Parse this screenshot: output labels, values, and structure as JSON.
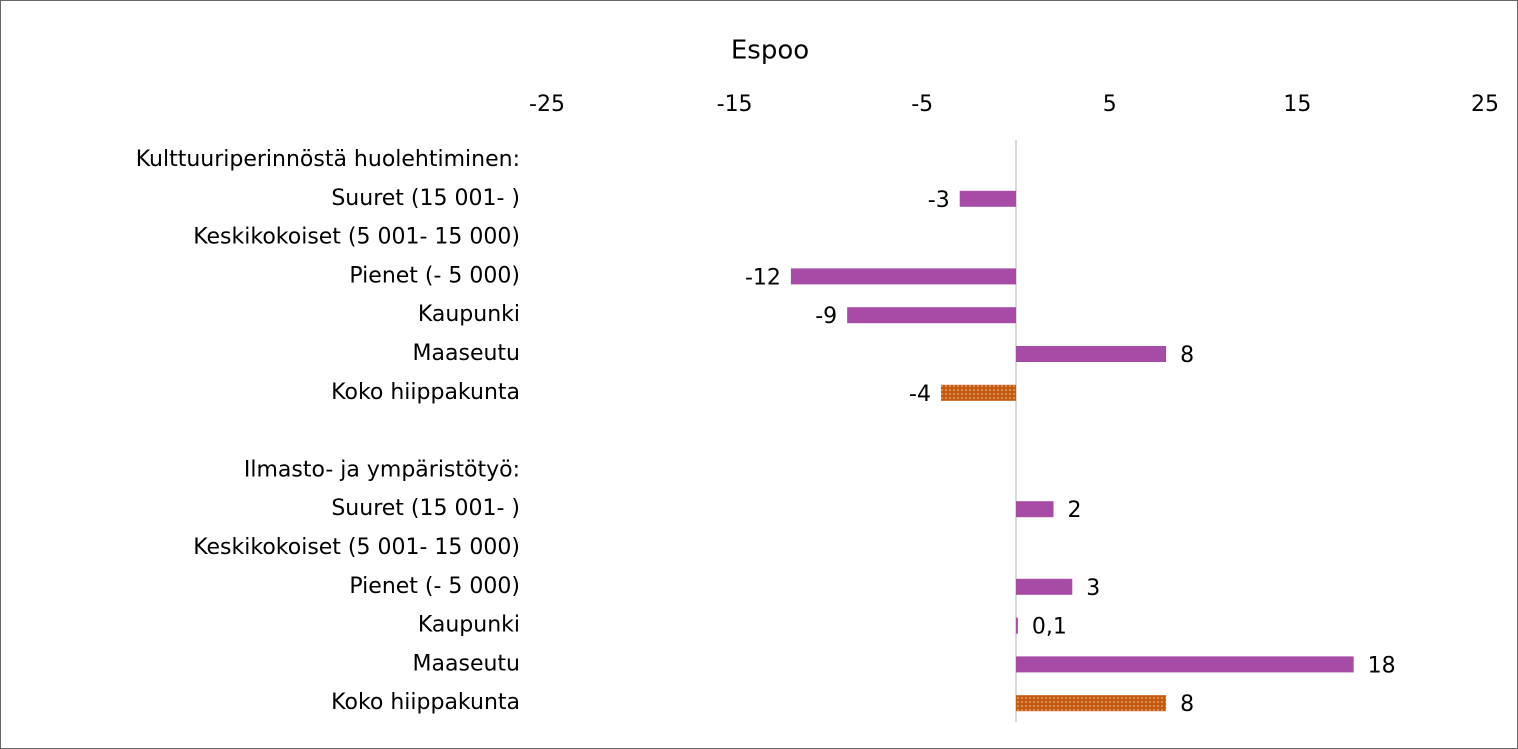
{
  "chart_data": {
    "type": "hbar",
    "title": "Espoo",
    "categories": [
      "Kulttuuriperinnöstä huolehtiminen:",
      "Suuret (15 001- )",
      "Keskikokoiset (5 001- 15 000)",
      "Pienet (- 5 000)",
      "Kaupunki",
      "Maaseutu",
      "Koko hiippakunta",
      null,
      "Ilmasto- ja ympäristötyö:",
      "Suuret (15 001- )",
      "Keskikokoiset (5 001- 15 000)",
      "Pienet (- 5 000)",
      "Kaupunki",
      "Maaseutu",
      "Koko hiippakunta"
    ],
    "values": [
      null,
      -3,
      null,
      -12,
      -9,
      8,
      -4,
      null,
      null,
      2,
      null,
      3,
      0.1,
      18,
      8
    ],
    "value_labels": [
      null,
      "-3",
      null,
      "-12",
      "-9",
      "8",
      "-4",
      null,
      null,
      "2",
      null,
      "3",
      "0,1",
      "18",
      "8"
    ],
    "colors": [
      null,
      "#a64ca6",
      null,
      "#a64ca6",
      "#a64ca6",
      "#a64ca6",
      "#c55a11",
      null,
      null,
      "#a64ca6",
      null,
      "#a64ca6",
      "#a64ca6",
      "#a64ca6",
      "#c55a11"
    ],
    "bar_styles": [
      null,
      "solid",
      null,
      "solid",
      "solid",
      "solid",
      "dotted",
      null,
      null,
      "solid",
      null,
      "solid",
      "solid",
      "solid",
      "dotted"
    ],
    "xlim": [
      -25,
      25
    ],
    "xticks": [
      -25,
      -15,
      -5,
      5,
      15,
      25
    ],
    "grid": false
  }
}
